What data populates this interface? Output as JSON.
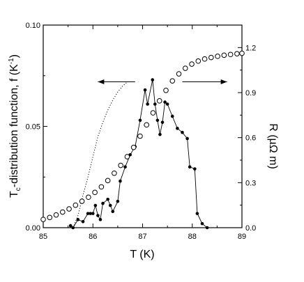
{
  "chart_data": {
    "type": "scatter",
    "xlabel": "T (K)",
    "ylabel_left": "T_c-distribution function, f (K^-1)",
    "ylabel_left_parts": {
      "pre": "T",
      "sub": "c",
      "mid": "-distribution function, f  (K",
      "sup": "-1",
      "post": ")"
    },
    "ylabel_right": "R (µΩ m)",
    "xlim": [
      85,
      89
    ],
    "ylim_left": [
      0,
      0.1
    ],
    "ylim_right": [
      0,
      1.35
    ],
    "x_ticks": [
      85,
      86,
      87,
      88,
      89
    ],
    "x_tick_labels": [
      "85",
      "86",
      "87",
      "88",
      "89"
    ],
    "y_left_ticks": [
      0,
      0.05,
      0.1
    ],
    "y_left_tick_labels": [
      "0.00",
      "0.05",
      "0.10"
    ],
    "y_right_ticks": [
      0,
      0.3,
      0.6,
      0.9,
      1.2
    ],
    "y_right_tick_labels": [
      "0.0",
      "0.3",
      "0.6",
      "0.9",
      "1.2"
    ],
    "grid": false,
    "legend": "none",
    "series": [
      {
        "style": "filled circles connected by line",
        "axis": "left",
        "color": "#000000",
        "x": [
          85.55,
          85.6,
          85.7,
          85.8,
          85.9,
          85.95,
          86.0,
          86.05,
          86.1,
          86.15,
          86.2,
          86.3,
          86.35,
          86.4,
          86.5,
          86.55,
          86.65,
          86.75,
          86.85,
          86.95,
          87.05,
          87.1,
          87.2,
          87.25,
          87.3,
          87.35,
          87.4,
          87.45,
          87.5,
          87.6,
          87.7,
          87.8,
          87.9,
          87.95,
          88.05,
          88.1,
          88.2,
          88.3
        ],
        "values": [
          0.001,
          0.0,
          0.004,
          0.003,
          0.007,
          0.007,
          0.007,
          0.011,
          0.006,
          0.004,
          0.012,
          0.014,
          0.011,
          0.008,
          0.013,
          0.023,
          0.03,
          0.036,
          0.04,
          0.053,
          0.068,
          0.061,
          0.073,
          0.061,
          0.053,
          0.046,
          0.052,
          0.062,
          0.061,
          0.055,
          0.049,
          0.047,
          0.044,
          0.03,
          0.029,
          0.007,
          0.002,
          0.0
        ]
      },
      {
        "style": "open circles",
        "axis": "right",
        "color": "#000000",
        "x": [
          85.0,
          85.13,
          85.26,
          85.39,
          85.52,
          85.65,
          85.78,
          85.91,
          86.04,
          86.17,
          86.3,
          86.43,
          86.56,
          86.69,
          86.82,
          86.95,
          87.08,
          87.21,
          87.34,
          87.47,
          87.6,
          87.73,
          87.86,
          87.99,
          88.12,
          88.25,
          88.38,
          88.51,
          88.64,
          88.77,
          88.9,
          89.0
        ],
        "values": [
          0.055,
          0.068,
          0.085,
          0.104,
          0.125,
          0.15,
          0.176,
          0.203,
          0.235,
          0.272,
          0.314,
          0.363,
          0.415,
          0.473,
          0.535,
          0.61,
          0.685,
          0.765,
          0.845,
          0.915,
          0.978,
          1.025,
          1.062,
          1.09,
          1.11,
          1.124,
          1.134,
          1.142,
          1.149,
          1.154,
          1.159,
          1.162
        ]
      },
      {
        "style": "dotted line",
        "axis": "left",
        "color": "#000000",
        "x": [
          85.6,
          85.7,
          85.8,
          85.9,
          86.0,
          86.1,
          86.2,
          86.3,
          86.4,
          86.5,
          86.6,
          86.7,
          86.8
        ],
        "values": [
          0.0,
          0.006,
          0.016,
          0.025,
          0.035,
          0.045,
          0.052,
          0.058,
          0.063,
          0.067,
          0.07,
          0.072,
          0.072
        ]
      }
    ],
    "annotations": [
      {
        "type": "arrow",
        "direction": "left",
        "x_from": 86.85,
        "x_to": 86.1,
        "y": 0.072,
        "axis": "left"
      },
      {
        "type": "arrow",
        "direction": "right",
        "x_from": 87.8,
        "x_to": 88.7,
        "y": 0.072,
        "axis": "left"
      }
    ]
  }
}
